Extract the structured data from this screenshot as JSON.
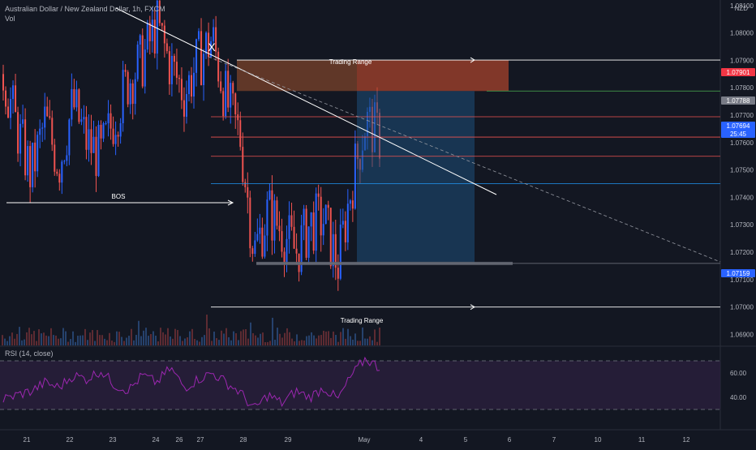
{
  "header": {
    "symbol_title": "Australian Dollar / New Zealand Dollar, 1h, FXCM",
    "volume_label": "Vol",
    "currency": "NZD",
    "rsi_label": "RSI (14, close)"
  },
  "colors": {
    "background": "#131722",
    "up_candle": "#2962ff",
    "down_candle": "#ef5350",
    "rsi_line": "#9c27b0",
    "rsi_band": "#2a1f3d",
    "stop_zone": "#a0522d",
    "target_zone": "#1e4f7a",
    "trendline": "#ffffff"
  },
  "chart_data": [
    {
      "type": "candlestick",
      "title": "Australian Dollar / New Zealand Dollar, 1h, FXCM",
      "y_unit": "NZD",
      "ylim": [
        1.0686,
        1.0812
      ],
      "y_ticks": [
        "1.08100",
        "1.08000",
        "1.07900",
        "1.07800",
        "1.07700",
        "1.07600",
        "1.07500",
        "1.07400",
        "1.07300",
        "1.07200",
        "1.07100",
        "1.07000",
        "1.06900"
      ],
      "x_ticks": [
        "21",
        "22",
        "23",
        "24",
        "26",
        "27",
        "28",
        "29",
        "May",
        "4",
        "5",
        "6",
        "7",
        "10",
        "11",
        "12"
      ],
      "close_path": [
        1.0785,
        1.0765,
        1.0748,
        1.0768,
        1.0752,
        1.0774,
        1.076,
        1.0755,
        1.077,
        1.0783,
        1.079,
        1.0803,
        1.0788,
        1.0778,
        1.079,
        1.0798,
        1.0775,
        1.0762,
        1.072,
        1.0735,
        1.0728,
        1.072,
        1.073,
        1.0732,
        1.0715,
        1.0745,
        1.0768,
        1.0762
      ],
      "price_labels": [
        {
          "text": "1.07901",
          "color": "#f23645"
        },
        {
          "text": "1.07788",
          "color": "#787b86"
        },
        {
          "text": "1.07694",
          "color": "#2962ff",
          "timer": "25:45"
        },
        {
          "text": "1.07159",
          "color": "#2962ff"
        }
      ],
      "horizontal_levels": [
        1.07901,
        1.07788,
        1.07694,
        1.0762,
        1.0755,
        1.0745,
        1.07159,
        1.07
      ],
      "annotations": [
        "Trading Range",
        "Trading Range",
        "BOS",
        "X"
      ]
    },
    {
      "type": "line",
      "title": "RSI (14, close)",
      "ylim": [
        20,
        80
      ],
      "y_ticks": [
        "60.00",
        "40.00"
      ],
      "band": [
        30,
        70
      ],
      "values": [
        38,
        42,
        45,
        52,
        48,
        58,
        55,
        62,
        50,
        46,
        58,
        52,
        64,
        48,
        55,
        60,
        52,
        44,
        30,
        42,
        35,
        45,
        40,
        48,
        38,
        58,
        72,
        64
      ]
    }
  ]
}
